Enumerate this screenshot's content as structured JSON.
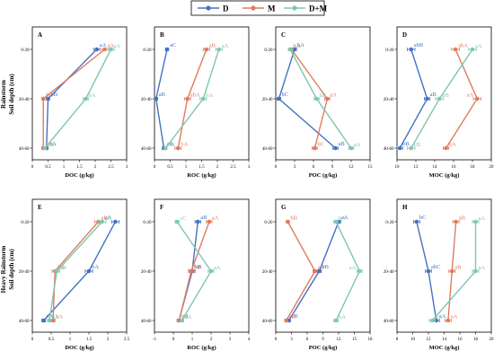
{
  "legend": [
    {
      "name": "D",
      "color": "#4472C4"
    },
    {
      "name": "M",
      "color": "#E07B5E"
    },
    {
      "name": "D+M",
      "color": "#7FC7AF"
    }
  ],
  "row_titles": [
    "Rainstorm",
    "Heavy Rainstorm"
  ],
  "ylabel": "Soil depth (cm)",
  "depth_labels": [
    "0-20",
    "20-40",
    "40-60"
  ],
  "chart_data": [
    {
      "panel": "A",
      "row": 0,
      "type": "line",
      "xlabel": "DOC (g/kg)",
      "xlim": [
        0,
        3
      ],
      "xticks": [
        0,
        0.5,
        1,
        1.5,
        2,
        2.5,
        3
      ],
      "series": [
        {
          "name": "D",
          "values": [
            2.05,
            0.5,
            0.45
          ],
          "errors": [
            0.1,
            0.05,
            0.05
          ],
          "labels": [
            "aA",
            "bB",
            "bA"
          ]
        },
        {
          "name": "M",
          "values": [
            2.3,
            0.35,
            0.35
          ],
          "errors": [
            0.15,
            0.05,
            0.05
          ],
          "labels": [
            "aA",
            "bB",
            "bA"
          ]
        },
        {
          "name": "D+M",
          "values": [
            2.5,
            1.7,
            0.4
          ],
          "errors": [
            0.1,
            0.08,
            0.05
          ],
          "labels": [
            "aA",
            "bA",
            "cA"
          ]
        }
      ]
    },
    {
      "panel": "B",
      "row": 0,
      "type": "line",
      "xlabel": "ROC (g/kg)",
      "xlim": [
        0,
        3
      ],
      "xticks": [
        0,
        0.5,
        1,
        1.5,
        2,
        2.5,
        3
      ],
      "series": [
        {
          "name": "D",
          "values": [
            0.4,
            0.05,
            0.3
          ],
          "errors": [
            0.05,
            0.05,
            0.05
          ],
          "labels": [
            "aC",
            "aB",
            "aB"
          ]
        },
        {
          "name": "M",
          "values": [
            1.65,
            1.05,
            0.75
          ],
          "errors": [
            0.1,
            0.1,
            0.1
          ],
          "labels": [
            "aB",
            "abA",
            "bA"
          ]
        },
        {
          "name": "D+M",
          "values": [
            2.05,
            1.55,
            0.35
          ],
          "errors": [
            0.1,
            0.1,
            0.05
          ],
          "labels": [
            "aA",
            "bA",
            "cB"
          ]
        }
      ]
    },
    {
      "panel": "C",
      "row": 0,
      "type": "line",
      "xlabel": "POC (g/kg)",
      "xlim": [
        0,
        15
      ],
      "xticks": [
        0,
        3,
        6,
        9,
        12,
        15
      ],
      "series": [
        {
          "name": "D",
          "values": [
            3,
            0.5,
            9.5
          ],
          "errors": [
            0.3,
            0.3,
            0.4
          ],
          "labels": [
            "bA",
            "bC",
            "aB"
          ]
        },
        {
          "name": "M",
          "values": [
            2.5,
            8.2,
            6.2
          ],
          "errors": [
            0.3,
            0.4,
            0.4
          ],
          "labels": [
            "cA",
            "aA",
            "bC"
          ]
        },
        {
          "name": "D+M",
          "values": [
            2.3,
            6.5,
            12
          ],
          "errors": [
            0.3,
            0.4,
            0.4
          ],
          "labels": [
            "bA",
            "bB",
            "aA"
          ]
        }
      ]
    },
    {
      "panel": "D",
      "row": 0,
      "type": "line",
      "xlabel": "MOC (g/kg)",
      "xlim": [
        10,
        20
      ],
      "xticks": [
        10,
        12,
        14,
        16,
        18,
        20
      ],
      "series": [
        {
          "name": "D",
          "values": [
            11.5,
            13.2,
            10.3
          ],
          "errors": [
            0.4,
            0.3,
            0.3
          ],
          "labels": [
            "abB",
            "aB",
            "bB"
          ]
        },
        {
          "name": "M",
          "values": [
            16.2,
            18.5,
            15.2
          ],
          "errors": [
            0.4,
            0.4,
            0.3
          ],
          "labels": [
            "abA",
            "aA",
            "bA"
          ]
        },
        {
          "name": "D+M",
          "values": [
            18,
            14.5,
            11.5
          ],
          "errors": [
            0.4,
            0.4,
            0.4
          ],
          "labels": [
            "aA",
            "bB",
            "cB"
          ]
        }
      ]
    },
    {
      "panel": "E",
      "row": 1,
      "type": "line",
      "xlabel": "DOC (g/kg)",
      "xlim": [
        0,
        2.5
      ],
      "xticks": [
        0,
        0.5,
        1,
        1.5,
        2,
        2.5
      ],
      "series": [
        {
          "name": "D",
          "values": [
            2.2,
            1.5,
            0.3
          ],
          "errors": [
            0.1,
            0.1,
            0.05
          ],
          "labels": [
            "aA",
            "bA",
            "cA"
          ]
        },
        {
          "name": "M",
          "values": [
            1.75,
            0.6,
            0.55
          ],
          "errors": [
            0.1,
            0.08,
            0.05
          ],
          "labels": [
            "aB",
            "bB",
            "bA"
          ]
        },
        {
          "name": "D+M",
          "values": [
            1.85,
            0.65,
            0.45
          ],
          "errors": [
            0.1,
            0.08,
            0.05
          ],
          "labels": [
            "aB",
            "bB",
            "bA"
          ]
        }
      ]
    },
    {
      "panel": "F",
      "row": 1,
      "type": "line",
      "xlabel": "ROC (g/kg)",
      "xlim": [
        -1,
        4
      ],
      "xticks": [
        -1,
        0,
        1,
        2,
        3,
        4
      ],
      "series": [
        {
          "name": "D",
          "values": [
            1.3,
            1.0,
            0.3
          ],
          "errors": [
            0.15,
            0.15,
            0.1
          ],
          "labels": [
            "aB",
            "bB",
            "cB"
          ]
        },
        {
          "name": "M",
          "values": [
            1.9,
            0.95,
            0.3
          ],
          "errors": [
            0.15,
            0.15,
            0.1
          ],
          "labels": [
            "aA",
            "bB",
            "cB"
          ]
        },
        {
          "name": "D+M",
          "values": [
            0.2,
            2.0,
            0.45
          ],
          "errors": [
            0.1,
            0.15,
            0.1
          ],
          "labels": [
            "cC",
            "aA",
            "bA"
          ]
        }
      ]
    },
    {
      "panel": "G",
      "row": 1,
      "type": "line",
      "xlabel": "POC (g/kg)",
      "xlim": [
        0,
        18
      ],
      "xticks": [
        0,
        3,
        6,
        9,
        12,
        15,
        18
      ],
      "series": [
        {
          "name": "D",
          "values": [
            12,
            8.3,
            2.5
          ],
          "errors": [
            0.4,
            0.4,
            0.3
          ],
          "labels": [
            "aA",
            "bB",
            "cB"
          ]
        },
        {
          "name": "M",
          "values": [
            2.3,
            7.5,
            2.0
          ],
          "errors": [
            0.3,
            0.4,
            0.3
          ],
          "labels": [
            "bB",
            "aB",
            "cB"
          ]
        },
        {
          "name": "D+M",
          "values": [
            11.5,
            16,
            11.5
          ],
          "errors": [
            0.4,
            0.5,
            0.4
          ],
          "labels": [
            "bA",
            "aA",
            "bA"
          ]
        }
      ]
    },
    {
      "panel": "H",
      "row": 1,
      "type": "line",
      "xlabel": "MOC (g/kg)",
      "xlim": [
        8,
        20
      ],
      "xticks": [
        8,
        10,
        12,
        14,
        16,
        18,
        20
      ],
      "series": [
        {
          "name": "D",
          "values": [
            10.5,
            12,
            13
          ],
          "errors": [
            0.4,
            0.4,
            0.4
          ],
          "labels": [
            "bC",
            "abC",
            "aA"
          ]
        },
        {
          "name": "M",
          "values": [
            15.5,
            15,
            14.5
          ],
          "errors": [
            0.4,
            0.4,
            0.4
          ],
          "labels": [
            "aB",
            "aB",
            "aA"
          ]
        },
        {
          "name": "D+M",
          "values": [
            18,
            18,
            12.5
          ],
          "errors": [
            0.4,
            0.4,
            0.4
          ],
          "labels": [
            "aA",
            "aA",
            "bA"
          ]
        }
      ]
    }
  ]
}
